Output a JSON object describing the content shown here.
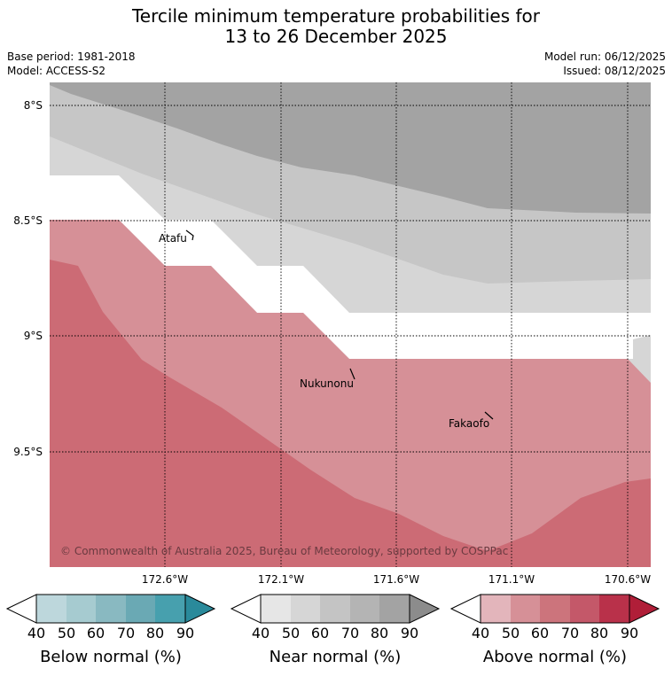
{
  "title": {
    "line1": "Tercile minimum temperature probabilities for",
    "line2": "13 to 26 December 2025"
  },
  "meta": {
    "base_period": "Base period: 1981-2018",
    "model": "Model: ACCESS-S2",
    "model_run": "Model run: 06/12/2025",
    "issued": "Issued: 08/12/2025"
  },
  "map": {
    "lat_labels": [
      "8°S",
      "8.5°S",
      "9°S",
      "9.5°S"
    ],
    "lon_labels": [
      "172.6°W",
      "172.1°W",
      "171.6°W",
      "171.1°W",
      "170.6°W"
    ],
    "places": [
      "Atafu",
      "Nukunonu",
      "Fakaofo"
    ],
    "credit": "© Commonwealth of Australia 2025, Bureau of Meteorology, supported by COSPPac"
  },
  "legends": [
    {
      "title": "Below normal (%)",
      "ticks": [
        "40",
        "50",
        "60",
        "70",
        "80",
        "90"
      ],
      "colors": [
        "#ffffff",
        "#bdd7dc",
        "#a6cbd0",
        "#89b9c1",
        "#6aa9b4",
        "#47a0ae",
        "#2a8a9b"
      ]
    },
    {
      "title": "Near normal (%)",
      "ticks": [
        "40",
        "50",
        "60",
        "70",
        "80",
        "90"
      ],
      "colors": [
        "#ffffff",
        "#e6e6e6",
        "#d6d6d6",
        "#c4c4c4",
        "#b4b4b4",
        "#a3a3a3",
        "#8c8c8c"
      ]
    },
    {
      "title": "Above normal (%)",
      "ticks": [
        "40",
        "50",
        "60",
        "70",
        "80",
        "90"
      ],
      "colors": [
        "#ffffff",
        "#e3b5bb",
        "#d69097",
        "#cc747c",
        "#c45869",
        "#b9314a",
        "#b01e38"
      ]
    }
  ]
}
